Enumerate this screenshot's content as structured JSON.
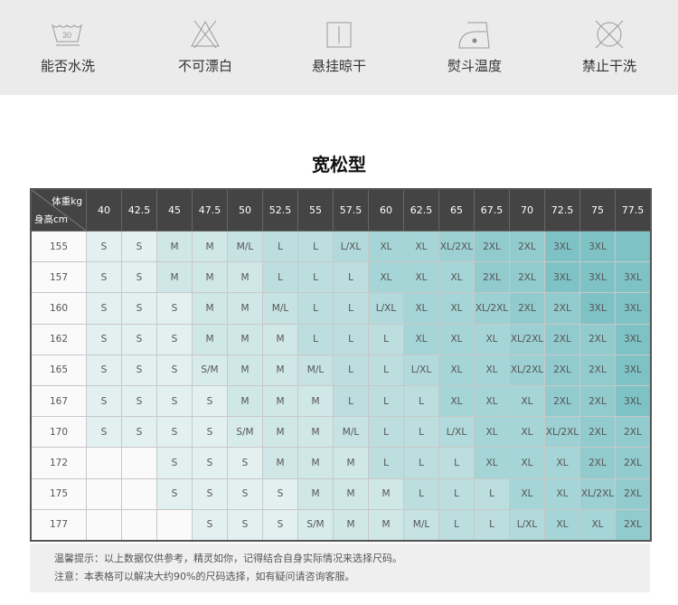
{
  "care": [
    {
      "icon": "wash-30-icon",
      "label": "能否水洗",
      "temp": "30"
    },
    {
      "icon": "no-bleach-icon",
      "label": "不可漂白"
    },
    {
      "icon": "hang-dry-icon",
      "label": "悬挂晾干"
    },
    {
      "icon": "iron-temperature-icon",
      "label": "熨斗温度"
    },
    {
      "icon": "no-dry-clean-icon",
      "label": "禁止干洗"
    }
  ],
  "title": "宽松型",
  "table": {
    "corner_weight": "体重kg",
    "corner_height": "身高cm",
    "weights": [
      "40",
      "42.5",
      "45",
      "47.5",
      "50",
      "52.5",
      "55",
      "57.5",
      "60",
      "62.5",
      "65",
      "67.5",
      "70",
      "72.5",
      "75",
      "77.5"
    ],
    "rows": [
      {
        "height": "155",
        "sizes": [
          "S",
          "S",
          "M",
          "M",
          "M/L",
          "L",
          "L",
          "L/XL",
          "XL",
          "XL",
          "XL/2XL",
          "2XL",
          "2XL",
          "3XL",
          "3XL",
          ""
        ]
      },
      {
        "height": "157",
        "sizes": [
          "S",
          "S",
          "M",
          "M",
          "M",
          "L",
          "L",
          "L",
          "XL",
          "XL",
          "XL",
          "2XL",
          "2XL",
          "3XL",
          "3XL",
          "3XL"
        ]
      },
      {
        "height": "160",
        "sizes": [
          "S",
          "S",
          "S",
          "M",
          "M",
          "M/L",
          "L",
          "L",
          "L/XL",
          "XL",
          "XL",
          "XL/2XL",
          "2XL",
          "2XL",
          "3XL",
          "3XL"
        ]
      },
      {
        "height": "162",
        "sizes": [
          "S",
          "S",
          "S",
          "M",
          "M",
          "M",
          "L",
          "L",
          "L",
          "XL",
          "XL",
          "XL",
          "XL/2XL",
          "2XL",
          "2XL",
          "3XL"
        ]
      },
      {
        "height": "165",
        "sizes": [
          "S",
          "S",
          "S",
          "S/M",
          "M",
          "M",
          "M/L",
          "L",
          "L",
          "L/XL",
          "XL",
          "XL",
          "XL/2XL",
          "2XL",
          "2XL",
          "3XL"
        ]
      },
      {
        "height": "167",
        "sizes": [
          "S",
          "S",
          "S",
          "S",
          "M",
          "M",
          "M",
          "L",
          "L",
          "L",
          "XL",
          "XL",
          "XL",
          "2XL",
          "2XL",
          "3XL"
        ]
      },
      {
        "height": "170",
        "sizes": [
          "S",
          "S",
          "S",
          "S",
          "S/M",
          "M",
          "M",
          "M/L",
          "L",
          "L",
          "L/XL",
          "XL",
          "XL",
          "XL/2XL",
          "2XL",
          "2XL"
        ]
      },
      {
        "height": "172",
        "sizes": [
          "",
          "",
          "S",
          "S",
          "S",
          "M",
          "M",
          "M",
          "L",
          "L",
          "L",
          "XL",
          "XL",
          "XL",
          "2XL",
          "2XL"
        ]
      },
      {
        "height": "175",
        "sizes": [
          "",
          "",
          "S",
          "S",
          "S",
          "S",
          "M",
          "M",
          "M",
          "L",
          "L",
          "L",
          "XL",
          "XL",
          "XL/2XL",
          "2XL"
        ]
      },
      {
        "height": "177",
        "sizes": [
          "",
          "",
          "",
          "S",
          "S",
          "S",
          "S/M",
          "M",
          "M",
          "M/L",
          "L",
          "L",
          "L/XL",
          "XL",
          "XL",
          "2XL"
        ]
      }
    ]
  },
  "size_colors": {
    "S": "#e3f0f0",
    "S/M": "#d7ebeb",
    "M": "#d0e7e7",
    "M/L": "#c6e2e3",
    "L": "#bcdedf",
    "L/XL": "#b2dadc",
    "XL": "#a6d5d7",
    "XL/2XL": "#9cd0d3",
    "2XL": "#92cbce",
    "3XL": "#7fc2c6"
  },
  "notes": [
    "温馨提示：以上数据仅供参考，精灵如你，记得结合自身实际情况来选择尺码。",
    "注意：本表格可以解决大约90%的尺码选择，如有疑问请咨询客服。"
  ]
}
